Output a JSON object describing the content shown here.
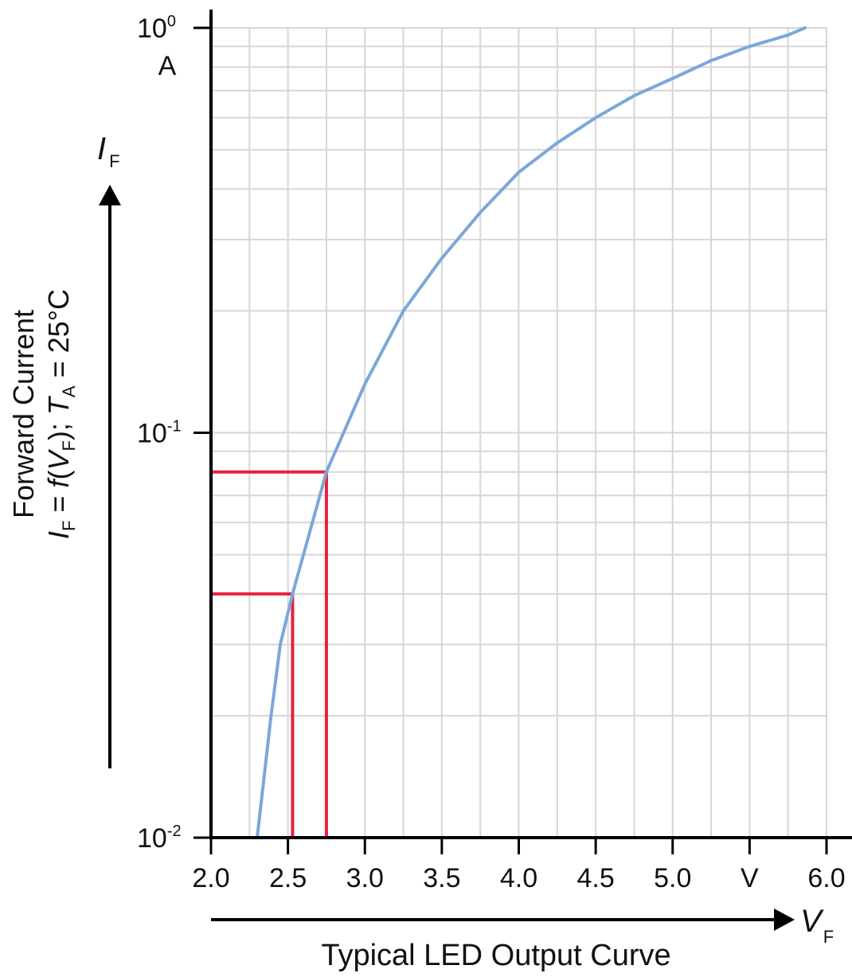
{
  "chart_data": {
    "type": "line",
    "title": "Typical LED Output Curve",
    "xlabel": "V_F",
    "ylabel": "Forward Current  I_F = f(V_F); T_A = 25°C",
    "y_axis_symbol": "I",
    "y_axis_symbol_sub": "F",
    "x_axis_symbol": "V",
    "x_axis_symbol_sub": "F",
    "y_unit": "A",
    "x_unit": "V",
    "xlim": [
      2.0,
      6.0
    ],
    "ylim": [
      0.01,
      1.0
    ],
    "yscale": "log",
    "grid": true,
    "x_ticks": [
      "2.0",
      "2.5",
      "3.0",
      "3.5",
      "4.0",
      "4.5",
      "5.0",
      "V",
      "6.0"
    ],
    "y_ticks": [
      {
        "base": "10",
        "exp": "0",
        "value": 1.0
      },
      {
        "base": "10",
        "exp": "-1",
        "value": 0.1
      },
      {
        "base": "10",
        "exp": "-2",
        "value": 0.01
      }
    ],
    "series": [
      {
        "name": "I_F vs V_F",
        "color": "#7ba7da",
        "x": [
          2.3,
          2.39,
          2.45,
          2.53,
          2.75,
          3.0,
          3.25,
          3.5,
          3.75,
          4.0,
          4.25,
          4.5,
          4.75,
          5.0,
          5.25,
          5.5,
          5.75,
          5.86
        ],
        "y": [
          0.01,
          0.02,
          0.03,
          0.04,
          0.08,
          0.132,
          0.2,
          0.27,
          0.35,
          0.44,
          0.52,
          0.6,
          0.68,
          0.75,
          0.83,
          0.9,
          0.96,
          1.0
        ]
      }
    ],
    "annotations": [
      {
        "type": "operating-point",
        "color": "#e8203f",
        "x": 2.53,
        "y": 0.04
      },
      {
        "type": "operating-point",
        "color": "#e8203f",
        "x": 2.75,
        "y": 0.08
      }
    ]
  },
  "labels": {
    "title": "Typical LED Output Curve",
    "y_unit": "A",
    "ylabel_line1": "Forward Current",
    "ylabel_I": "I",
    "ylabel_F": "F",
    "ylabel_eq": " = ",
    "ylabel_f": "f",
    "ylabel_open": "(",
    "ylabel_V": "V",
    "ylabel_close": "); ",
    "ylabel_T": "T",
    "ylabel_A": "A",
    "ylabel_temp": " = 25°C",
    "y_sym": "I",
    "y_sym_sub": "F",
    "x_sym": "V",
    "x_sym_sub": "F"
  },
  "colors": {
    "curve": "#7ba7da",
    "marker": "#e8203f",
    "grid": "#d6d6d6",
    "axis": "#000000"
  }
}
